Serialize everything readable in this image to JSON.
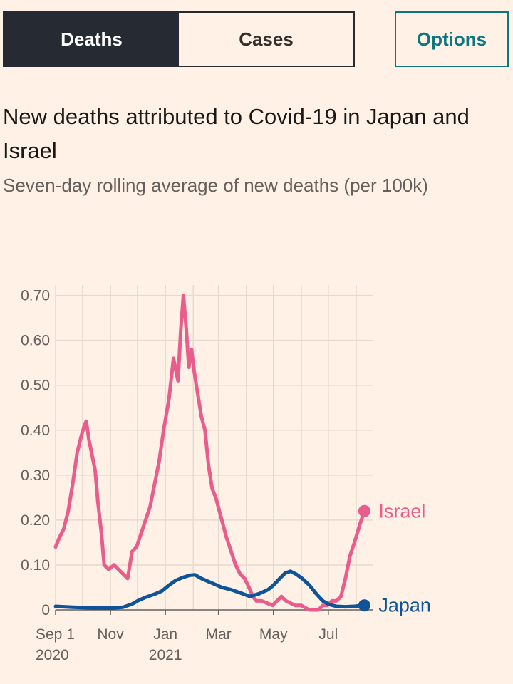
{
  "tabs": [
    {
      "label": "Deaths",
      "active": true
    },
    {
      "label": "Cases",
      "active": false
    }
  ],
  "options_label": "Options",
  "chart_data": {
    "type": "line",
    "title": "New deaths attributed to Covid-19 in Japan and Israel",
    "subtitle": "Seven-day rolling average of new deaths (per 100k)",
    "xlabel": "",
    "ylabel": "",
    "x_start": "2020-09-01",
    "x_end": "2021-08-20",
    "ylim": [
      0,
      0.72
    ],
    "y_ticks": [
      {
        "value": 0,
        "label": "0"
      },
      {
        "value": 0.1,
        "label": "0.10"
      },
      {
        "value": 0.2,
        "label": "0.20"
      },
      {
        "value": 0.3,
        "label": "0.30"
      },
      {
        "value": 0.4,
        "label": "0.40"
      },
      {
        "value": 0.5,
        "label": "0.50"
      },
      {
        "value": 0.6,
        "label": "0.60"
      },
      {
        "value": 0.7,
        "label": "0.70"
      }
    ],
    "x_ticks": [
      {
        "date": "2020-09-01",
        "label": "Sep 1",
        "sublabel": "2020"
      },
      {
        "date": "2020-11-01",
        "label": "Nov",
        "sublabel": ""
      },
      {
        "date": "2021-01-01",
        "label": "Jan",
        "sublabel": "2021"
      },
      {
        "date": "2021-03-01",
        "label": "Mar",
        "sublabel": ""
      },
      {
        "date": "2021-05-01",
        "label": "May",
        "sublabel": ""
      },
      {
        "date": "2021-07-01",
        "label": "Jul",
        "sublabel": ""
      }
    ],
    "gridlines_x": [
      "2020-09-01",
      "2020-10-01",
      "2020-11-01",
      "2020-12-01",
      "2021-01-01",
      "2021-02-01",
      "2021-03-01",
      "2021-04-01",
      "2021-05-01",
      "2021-06-01",
      "2021-07-01",
      "2021-08-01"
    ],
    "series": [
      {
        "name": "Israel",
        "color": "#e95d8c",
        "points": [
          [
            "2020-09-01",
            0.14
          ],
          [
            "2020-09-05",
            0.16
          ],
          [
            "2020-09-10",
            0.18
          ],
          [
            "2020-09-15",
            0.22
          ],
          [
            "2020-09-20",
            0.28
          ],
          [
            "2020-09-25",
            0.35
          ],
          [
            "2020-09-30",
            0.39
          ],
          [
            "2020-10-03",
            0.41
          ],
          [
            "2020-10-05",
            0.42
          ],
          [
            "2020-10-08",
            0.38
          ],
          [
            "2020-10-12",
            0.34
          ],
          [
            "2020-10-15",
            0.31
          ],
          [
            "2020-10-18",
            0.24
          ],
          [
            "2020-10-22",
            0.17
          ],
          [
            "2020-10-25",
            0.1
          ],
          [
            "2020-10-30",
            0.09
          ],
          [
            "2020-11-05",
            0.1
          ],
          [
            "2020-11-10",
            0.09
          ],
          [
            "2020-11-15",
            0.08
          ],
          [
            "2020-11-20",
            0.07
          ],
          [
            "2020-11-25",
            0.13
          ],
          [
            "2020-11-30",
            0.14
          ],
          [
            "2020-12-05",
            0.17
          ],
          [
            "2020-12-10",
            0.2
          ],
          [
            "2020-12-15",
            0.23
          ],
          [
            "2020-12-20",
            0.28
          ],
          [
            "2020-12-25",
            0.33
          ],
          [
            "2020-12-30",
            0.4
          ],
          [
            "2021-01-05",
            0.47
          ],
          [
            "2021-01-10",
            0.56
          ],
          [
            "2021-01-15",
            0.51
          ],
          [
            "2021-01-18",
            0.62
          ],
          [
            "2021-01-21",
            0.7
          ],
          [
            "2021-01-24",
            0.63
          ],
          [
            "2021-01-27",
            0.54
          ],
          [
            "2021-01-30",
            0.58
          ],
          [
            "2021-02-02",
            0.53
          ],
          [
            "2021-02-06",
            0.48
          ],
          [
            "2021-02-10",
            0.43
          ],
          [
            "2021-02-14",
            0.4
          ],
          [
            "2021-02-18",
            0.32
          ],
          [
            "2021-02-22",
            0.27
          ],
          [
            "2021-02-26",
            0.25
          ],
          [
            "2021-03-02",
            0.22
          ],
          [
            "2021-03-06",
            0.19
          ],
          [
            "2021-03-10",
            0.16
          ],
          [
            "2021-03-15",
            0.13
          ],
          [
            "2021-03-20",
            0.1
          ],
          [
            "2021-03-25",
            0.08
          ],
          [
            "2021-03-30",
            0.07
          ],
          [
            "2021-04-04",
            0.05
          ],
          [
            "2021-04-08",
            0.03
          ],
          [
            "2021-04-12",
            0.02
          ],
          [
            "2021-04-18",
            0.02
          ],
          [
            "2021-04-24",
            0.015
          ],
          [
            "2021-04-30",
            0.01
          ],
          [
            "2021-05-05",
            0.02
          ],
          [
            "2021-05-10",
            0.03
          ],
          [
            "2021-05-15",
            0.02
          ],
          [
            "2021-05-20",
            0.015
          ],
          [
            "2021-05-25",
            0.01
          ],
          [
            "2021-06-01",
            0.01
          ],
          [
            "2021-06-05",
            0.005
          ],
          [
            "2021-06-10",
            0.0
          ],
          [
            "2021-06-15",
            0.0
          ],
          [
            "2021-06-20",
            0.0
          ],
          [
            "2021-06-25",
            0.01
          ],
          [
            "2021-06-30",
            0.01
          ],
          [
            "2021-07-05",
            0.02
          ],
          [
            "2021-07-10",
            0.02
          ],
          [
            "2021-07-15",
            0.03
          ],
          [
            "2021-07-20",
            0.07
          ],
          [
            "2021-07-25",
            0.12
          ],
          [
            "2021-07-30",
            0.15
          ],
          [
            "2021-08-05",
            0.19
          ],
          [
            "2021-08-10",
            0.22
          ]
        ]
      },
      {
        "name": "Japan",
        "color": "#0f5499",
        "points": [
          [
            "2020-09-01",
            0.008
          ],
          [
            "2020-09-10",
            0.007
          ],
          [
            "2020-09-20",
            0.006
          ],
          [
            "2020-10-01",
            0.005
          ],
          [
            "2020-10-15",
            0.004
          ],
          [
            "2020-11-01",
            0.004
          ],
          [
            "2020-11-15",
            0.006
          ],
          [
            "2020-11-25",
            0.013
          ],
          [
            "2020-12-01",
            0.02
          ],
          [
            "2020-12-10",
            0.028
          ],
          [
            "2020-12-20",
            0.035
          ],
          [
            "2020-12-28",
            0.042
          ],
          [
            "2021-01-05",
            0.055
          ],
          [
            "2021-01-12",
            0.065
          ],
          [
            "2021-01-20",
            0.072
          ],
          [
            "2021-01-28",
            0.077
          ],
          [
            "2021-02-03",
            0.078
          ],
          [
            "2021-02-10",
            0.07
          ],
          [
            "2021-02-18",
            0.063
          ],
          [
            "2021-02-25",
            0.057
          ],
          [
            "2021-03-05",
            0.05
          ],
          [
            "2021-03-15",
            0.045
          ],
          [
            "2021-03-25",
            0.038
          ],
          [
            "2021-04-05",
            0.03
          ],
          [
            "2021-04-15",
            0.036
          ],
          [
            "2021-04-25",
            0.045
          ],
          [
            "2021-05-01",
            0.055
          ],
          [
            "2021-05-08",
            0.07
          ],
          [
            "2021-05-14",
            0.082
          ],
          [
            "2021-05-20",
            0.086
          ],
          [
            "2021-05-26",
            0.08
          ],
          [
            "2021-06-02",
            0.07
          ],
          [
            "2021-06-10",
            0.055
          ],
          [
            "2021-06-18",
            0.035
          ],
          [
            "2021-06-25",
            0.02
          ],
          [
            "2021-07-02",
            0.012
          ],
          [
            "2021-07-10",
            0.008
          ],
          [
            "2021-07-20",
            0.007
          ],
          [
            "2021-07-30",
            0.008
          ],
          [
            "2021-08-05",
            0.009
          ],
          [
            "2021-08-10",
            0.01
          ]
        ]
      }
    ],
    "end_labels": [
      {
        "series": "Israel",
        "label": "Israel"
      },
      {
        "series": "Japan",
        "label": "Japan"
      }
    ]
  }
}
